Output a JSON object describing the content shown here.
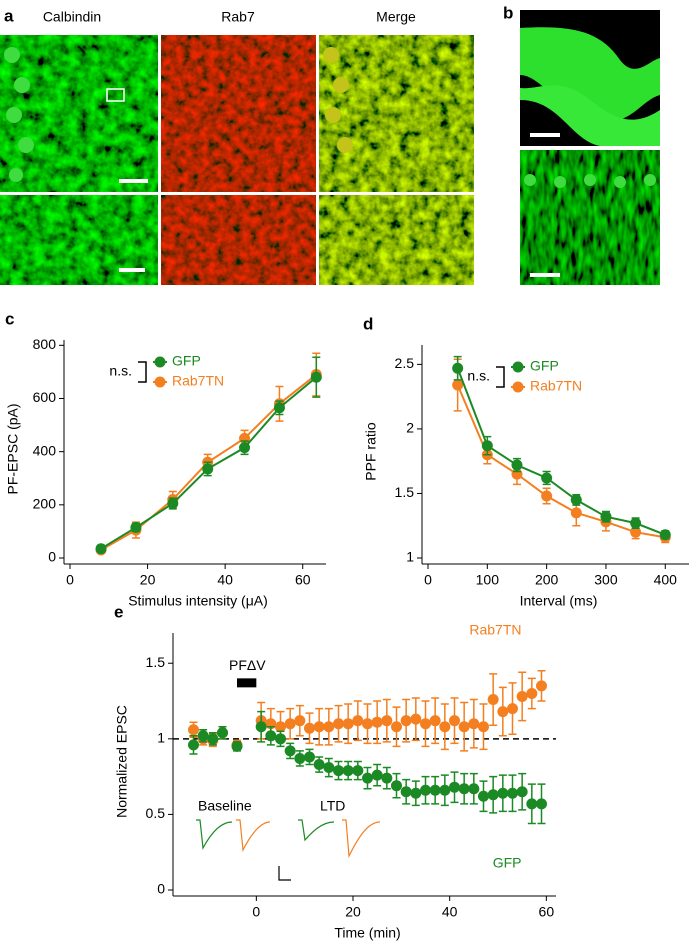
{
  "figure": {
    "panel_a": "a",
    "panel_b": "b",
    "columns": [
      "Calbindin",
      "Rab7",
      "Merge"
    ]
  },
  "chart_data": [
    {
      "type": "line",
      "panel_label": "c",
      "x_label": "Stimulus intensity (μA)",
      "y_label": "PF-EPSC (pA)",
      "xlim": [
        0,
        66
      ],
      "xticks": [
        0,
        20,
        40,
        60
      ],
      "ylim": [
        0,
        820
      ],
      "yticks": [
        0,
        200,
        400,
        600,
        800
      ],
      "annotation": "n.s.",
      "legend": "upper left",
      "lines": true,
      "series": [
        {
          "name": "GFP",
          "color": "#1b8a24",
          "x": [
            8,
            17,
            26.5,
            35.5,
            45,
            54,
            63.5
          ],
          "values": [
            35,
            115,
            205,
            335,
            415,
            565,
            680
          ],
          "errors": [
            8,
            15,
            20,
            25,
            25,
            25,
            75
          ]
        },
        {
          "name": "Rab7TN",
          "color": "#f47f20",
          "x": [
            8,
            17,
            26.5,
            35.5,
            45,
            54,
            63.5
          ],
          "values": [
            30,
            105,
            220,
            360,
            450,
            580,
            690
          ],
          "errors": [
            8,
            30,
            30,
            30,
            30,
            65,
            80
          ]
        }
      ]
    },
    {
      "type": "line",
      "panel_label": "d",
      "x_label": "Interval (ms)",
      "y_label": "PPF ratio",
      "xlim": [
        0,
        440
      ],
      "xticks": [
        0,
        100,
        200,
        300,
        400
      ],
      "ylim": [
        1,
        2.65
      ],
      "yticks": [
        1,
        1.5,
        2,
        2.5
      ],
      "annotation": "n.s.",
      "legend": "upper left",
      "lines": true,
      "series": [
        {
          "name": "GFP",
          "color": "#1b8a24",
          "x": [
            50,
            100,
            150,
            200,
            250,
            300,
            350,
            400
          ],
          "values": [
            2.47,
            1.87,
            1.72,
            1.62,
            1.45,
            1.32,
            1.27,
            1.18
          ],
          "errors": [
            0.09,
            0.07,
            0.05,
            0.05,
            0.04,
            0.04,
            0.04,
            0.03
          ]
        },
        {
          "name": "Rab7TN",
          "color": "#f47f20",
          "x": [
            50,
            100,
            150,
            200,
            250,
            300,
            350,
            400
          ],
          "values": [
            2.34,
            1.8,
            1.65,
            1.48,
            1.35,
            1.28,
            1.2,
            1.16
          ],
          "errors": [
            0.2,
            0.07,
            0.08,
            0.06,
            0.1,
            0.07,
            0.05,
            0.04
          ]
        }
      ]
    },
    {
      "type": "scatter",
      "panel_label": "e",
      "x_label": "Time (min)",
      "y_label": "Normalized EPSC",
      "xlim": [
        -16,
        62
      ],
      "xticks": [
        0,
        20,
        40,
        60
      ],
      "ylim": [
        0,
        1.7
      ],
      "yticks": [
        0,
        0.5,
        1,
        1.5
      ],
      "reference_line": 1,
      "legend": "inline",
      "lines": false,
      "stimulus": {
        "label": "PFΔV",
        "start": -4,
        "end": 0
      },
      "inset_labels": [
        "Baseline",
        "LTD"
      ],
      "series": [
        {
          "name": "GFP",
          "color": "#1b8a24",
          "x": [
            -13,
            -11,
            -9,
            -7,
            -4,
            1,
            3,
            5,
            7,
            9,
            11,
            13,
            15,
            17,
            19,
            21,
            23,
            25,
            27,
            29,
            31,
            33,
            35,
            37,
            39,
            41,
            43,
            45,
            47,
            49,
            51,
            53,
            55,
            57,
            59
          ],
          "values": [
            0.96,
            1.02,
            1.0,
            1.04,
            0.95,
            1.08,
            1.02,
            1.0,
            0.92,
            0.87,
            0.88,
            0.83,
            0.81,
            0.79,
            0.79,
            0.79,
            0.74,
            0.76,
            0.74,
            0.69,
            0.65,
            0.64,
            0.66,
            0.66,
            0.66,
            0.68,
            0.67,
            0.67,
            0.62,
            0.63,
            0.64,
            0.64,
            0.65,
            0.57,
            0.57
          ],
          "errors": [
            0.06,
            0.04,
            0.04,
            0.04,
            0.03,
            0.1,
            0.06,
            0.05,
            0.05,
            0.05,
            0.05,
            0.05,
            0.06,
            0.06,
            0.06,
            0.06,
            0.07,
            0.07,
            0.07,
            0.08,
            0.08,
            0.08,
            0.09,
            0.09,
            0.1,
            0.1,
            0.1,
            0.1,
            0.1,
            0.12,
            0.12,
            0.12,
            0.12,
            0.13,
            0.13
          ]
        },
        {
          "name": "Rab7TN",
          "color": "#f47f20",
          "x": [
            -13,
            -11,
            -9,
            -7,
            -4,
            1,
            3,
            5,
            7,
            9,
            11,
            13,
            15,
            17,
            19,
            21,
            23,
            25,
            27,
            29,
            31,
            33,
            35,
            37,
            39,
            41,
            43,
            45,
            47,
            49,
            51,
            53,
            55,
            57,
            59
          ],
          "values": [
            1.06,
            1.0,
            0.99,
            1.04,
            0.96,
            1.12,
            1.1,
            1.08,
            1.1,
            1.12,
            1.07,
            1.08,
            1.08,
            1.1,
            1.1,
            1.12,
            1.1,
            1.11,
            1.12,
            1.08,
            1.12,
            1.13,
            1.1,
            1.12,
            1.08,
            1.12,
            1.08,
            1.1,
            1.08,
            1.26,
            1.18,
            1.2,
            1.28,
            1.3,
            1.35
          ],
          "errors": [
            0.05,
            0.04,
            0.04,
            0.04,
            0.03,
            0.12,
            0.1,
            0.1,
            0.1,
            0.1,
            0.1,
            0.12,
            0.12,
            0.12,
            0.13,
            0.13,
            0.13,
            0.14,
            0.14,
            0.13,
            0.14,
            0.14,
            0.15,
            0.15,
            0.15,
            0.15,
            0.16,
            0.16,
            0.15,
            0.17,
            0.16,
            0.17,
            0.16,
            0.1,
            0.1
          ]
        }
      ]
    }
  ]
}
